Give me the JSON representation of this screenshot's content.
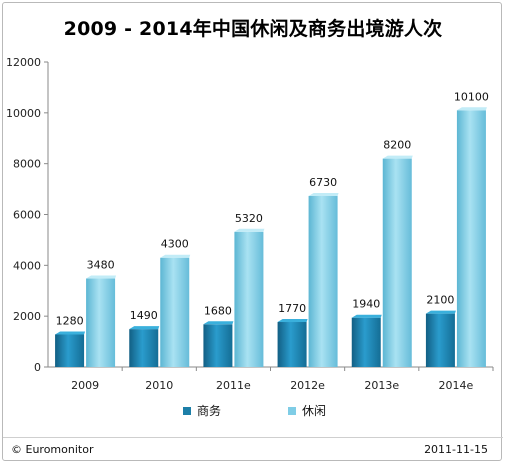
{
  "chart_data": {
    "type": "bar",
    "title": "2009 - 2014年中国休闲及商务出境游人次",
    "categories": [
      "2009",
      "2010",
      "2011e",
      "2012e",
      "2013e",
      "2014e"
    ],
    "series": [
      {
        "name": "商务",
        "values": [
          1280,
          1490,
          1680,
          1770,
          1940,
          2100
        ],
        "color": "#1d7fa8"
      },
      {
        "name": "休闲",
        "values": [
          3480,
          4300,
          5320,
          6730,
          8200,
          10100
        ],
        "color": "#7fcde6"
      }
    ],
    "ylim": [
      0,
      12000
    ],
    "y_ticks": [
      "0",
      "2000",
      "4000",
      "6000",
      "8000",
      "10000",
      "12000"
    ],
    "grid": false,
    "legend_position": "bottom",
    "xlabel": "",
    "ylabel": ""
  },
  "footer": {
    "source": "© Euromonitor",
    "date": "2011-11-15"
  }
}
